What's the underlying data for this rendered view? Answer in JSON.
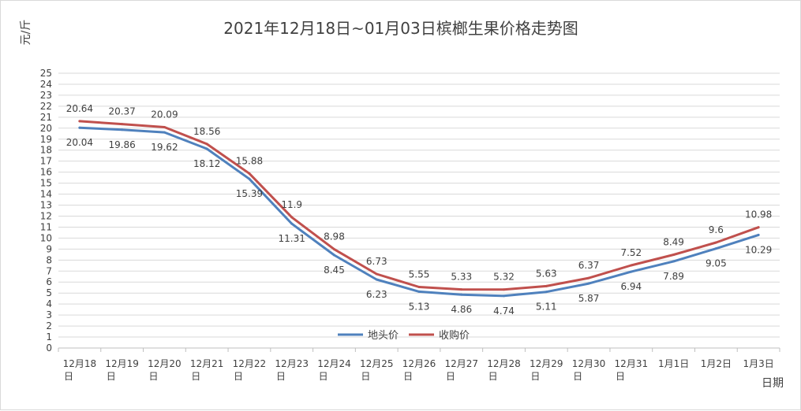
{
  "chart_data": {
    "type": "line",
    "title": "2021年12月18日~01月03日槟榔生果价格走势图",
    "ylabel": "元/斤",
    "xlabel": "日期",
    "ylim": [
      0,
      25
    ],
    "y_ticks": [
      "0",
      "1",
      "2",
      "3",
      "4",
      "5",
      "6",
      "7",
      "8",
      "9",
      "10",
      "11",
      "12",
      "13",
      "14",
      "15",
      "16",
      "17",
      "18",
      "19",
      "20",
      "21",
      "22",
      "23",
      "24",
      "25"
    ],
    "grid": true,
    "legend_position": "bottom-center",
    "categories": [
      {
        "line1": "12月18",
        "line2": "日"
      },
      {
        "line1": "12月19",
        "line2": "日"
      },
      {
        "line1": "12月20",
        "line2": "日"
      },
      {
        "line1": "12月21",
        "line2": "日"
      },
      {
        "line1": "12月22",
        "line2": "日"
      },
      {
        "line1": "12月23",
        "line2": "日"
      },
      {
        "line1": "12月24",
        "line2": "日"
      },
      {
        "line1": "12月25",
        "line2": "日"
      },
      {
        "line1": "12月26",
        "line2": "日"
      },
      {
        "line1": "12月27",
        "line2": "日"
      },
      {
        "line1": "12月28",
        "line2": "日"
      },
      {
        "line1": "12月29",
        "line2": "日"
      },
      {
        "line1": "12月30",
        "line2": "日"
      },
      {
        "line1": "12月31",
        "line2": "日"
      },
      {
        "line1": "1月1日",
        "line2": ""
      },
      {
        "line1": "1月2日",
        "line2": ""
      },
      {
        "line1": "1月3日",
        "line2": ""
      }
    ],
    "series": [
      {
        "name": "地头价",
        "color": "#4f81bd",
        "label_position": "below",
        "values": [
          20.04,
          19.86,
          19.62,
          18.12,
          15.39,
          11.31,
          8.45,
          6.23,
          5.13,
          4.86,
          4.74,
          5.11,
          5.87,
          6.94,
          7.89,
          9.05,
          10.29
        ],
        "labels": [
          "20.04",
          "19.86",
          "19.62",
          "18.12",
          "15.39",
          "11.31",
          "8.45",
          "6.23",
          "5.13",
          "4.86",
          "4.74",
          "5.11",
          "5.87",
          "6.94",
          "7.89",
          "9.05",
          "10.29"
        ]
      },
      {
        "name": "收购价",
        "color": "#c0504d",
        "label_position": "above",
        "values": [
          20.64,
          20.37,
          20.09,
          18.56,
          15.88,
          11.9,
          8.98,
          6.73,
          5.55,
          5.33,
          5.32,
          5.63,
          6.37,
          7.52,
          8.49,
          9.6,
          10.98
        ],
        "labels": [
          "20.64",
          "20.37",
          "20.09",
          "18.56",
          "15.88",
          "11.9",
          "8.98",
          "6.73",
          "5.55",
          "5.33",
          "5.32",
          "5.63",
          "6.37",
          "7.52",
          "8.49",
          "9.6",
          "10.98"
        ]
      }
    ]
  }
}
